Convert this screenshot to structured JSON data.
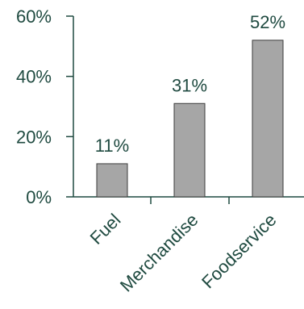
{
  "chart_data": {
    "type": "bar",
    "categories": [
      "Fuel",
      "Merchandise",
      "Foodservice"
    ],
    "values": [
      11,
      31,
      52
    ],
    "data_labels": [
      "11%",
      "31%",
      "52%"
    ],
    "y_tick_values": [
      0,
      20,
      40,
      60
    ],
    "y_tick_labels": [
      "0%",
      "20%",
      "40%",
      "60%"
    ],
    "ylim": [
      0,
      60
    ],
    "grid": false,
    "colors": {
      "bar_fill": "#a6a6a6",
      "bar_stroke": "#3b3b3b",
      "axis": "#1f4a40",
      "text": "#1f4a40"
    }
  }
}
